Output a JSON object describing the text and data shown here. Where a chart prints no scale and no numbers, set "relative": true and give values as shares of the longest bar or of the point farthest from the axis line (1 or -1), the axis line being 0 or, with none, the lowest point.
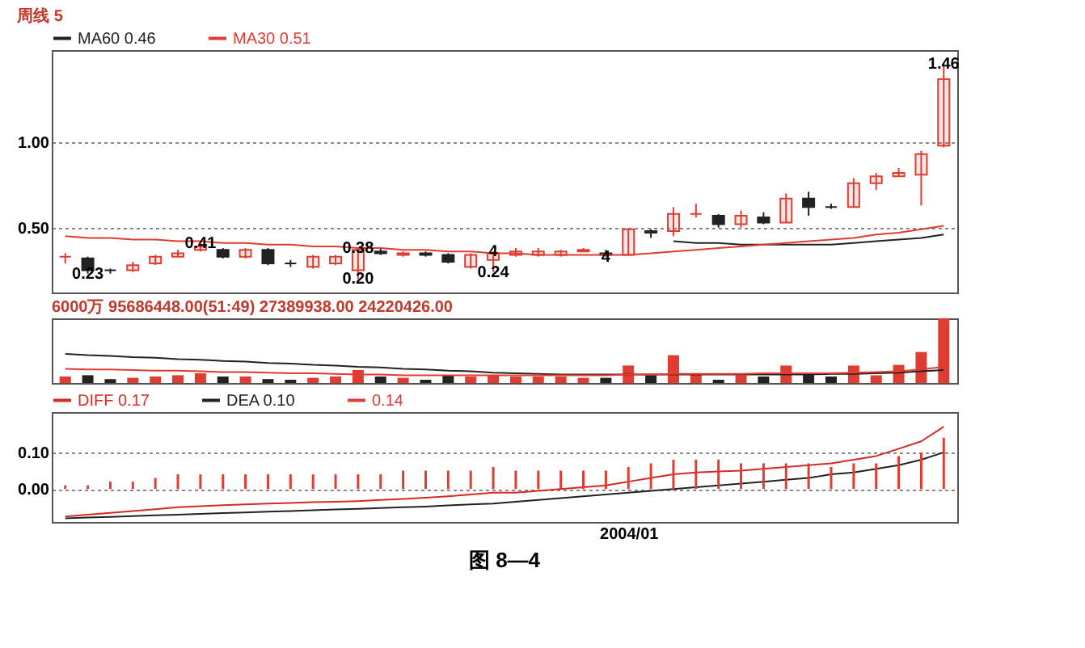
{
  "chart_data": [
    {
      "type": "candlestick",
      "title": "周线",
      "categories": [
        null,
        null,
        null,
        null,
        null,
        null,
        null,
        null,
        null,
        null,
        null,
        null,
        null,
        null,
        null,
        null,
        null,
        null,
        null,
        null,
        null,
        null,
        null,
        null,
        null,
        null,
        null,
        null,
        null,
        null,
        null,
        null,
        null,
        null,
        null,
        null,
        null,
        null,
        null,
        null
      ],
      "ohlc": [
        [
          0.33,
          0.35,
          0.29,
          0.33
        ],
        [
          0.32,
          0.33,
          0.23,
          0.25
        ],
        [
          0.25,
          0.26,
          0.23,
          0.25
        ],
        [
          0.25,
          0.3,
          0.24,
          0.28
        ],
        [
          0.29,
          0.34,
          0.28,
          0.33
        ],
        [
          0.33,
          0.37,
          0.33,
          0.35
        ],
        [
          0.37,
          0.41,
          0.36,
          0.39
        ],
        [
          0.37,
          0.38,
          0.32,
          0.33
        ],
        [
          0.33,
          0.38,
          0.32,
          0.37
        ],
        [
          0.37,
          0.38,
          0.28,
          0.29
        ],
        [
          0.29,
          0.31,
          0.27,
          0.29
        ],
        [
          0.27,
          0.34,
          0.26,
          0.33
        ],
        [
          0.29,
          0.34,
          0.28,
          0.33
        ],
        [
          0.25,
          0.38,
          0.2,
          0.37
        ],
        [
          0.36,
          0.38,
          0.34,
          0.35
        ],
        [
          0.34,
          0.36,
          0.33,
          0.35
        ],
        [
          0.35,
          0.36,
          0.33,
          0.34
        ],
        [
          0.34,
          0.35,
          0.29,
          0.3
        ],
        [
          0.27,
          0.35,
          0.26,
          0.34
        ],
        [
          0.31,
          0.36,
          0.24,
          0.35
        ],
        [
          0.34,
          0.38,
          0.33,
          0.36
        ],
        [
          0.34,
          0.38,
          0.33,
          0.36
        ],
        [
          0.34,
          0.37,
          0.33,
          0.36
        ],
        [
          0.36,
          0.38,
          0.36,
          0.37
        ],
        [
          0.35,
          0.37,
          0.33,
          0.34
        ],
        [
          0.34,
          0.49,
          0.34,
          0.49
        ],
        [
          0.48,
          0.49,
          0.44,
          0.47
        ],
        [
          0.48,
          0.62,
          0.45,
          0.58
        ],
        [
          0.58,
          0.64,
          0.56,
          0.58
        ],
        [
          0.57,
          0.58,
          0.5,
          0.52
        ],
        [
          0.52,
          0.6,
          0.5,
          0.57
        ],
        [
          0.56,
          0.59,
          0.52,
          0.53
        ],
        [
          0.53,
          0.7,
          0.53,
          0.67
        ],
        [
          0.67,
          0.71,
          0.57,
          0.62
        ],
        [
          0.62,
          0.64,
          0.61,
          0.62
        ],
        [
          0.62,
          0.79,
          0.62,
          0.76
        ],
        [
          0.76,
          0.82,
          0.72,
          0.8
        ],
        [
          0.8,
          0.85,
          0.8,
          0.82
        ],
        [
          0.81,
          0.95,
          0.63,
          0.93
        ],
        [
          0.98,
          1.46,
          0.97,
          1.37
        ]
      ],
      "colors": [
        "#e03c31",
        "#222222",
        "#222222",
        "#e03c31",
        "#e03c31",
        "#e03c31",
        "#e03c31",
        "#222222",
        "#e03c31",
        "#222222",
        "#222222",
        "#e03c31",
        "#e03c31",
        "#e03c31",
        "#222222",
        "#e03c31",
        "#222222",
        "#222222",
        "#e03c31",
        "#e03c31",
        "#e03c31",
        "#e03c31",
        "#e03c31",
        "#e03c31",
        "#222222",
        "#e03c31",
        "#222222",
        "#e03c31",
        "#e03c31",
        "#222222",
        "#e03c31",
        "#222222",
        "#e03c31",
        "#222222",
        "#222222",
        "#e03c31",
        "#e03c31",
        "#e03c31",
        "#e03c31",
        "#e03c31"
      ],
      "series": [
        {
          "name": "MA60 0.46",
          "type": "line",
          "color": "#222222",
          "values": [
            null,
            null,
            null,
            null,
            null,
            null,
            null,
            null,
            null,
            null,
            null,
            null,
            null,
            null,
            null,
            null,
            null,
            null,
            null,
            null,
            null,
            null,
            null,
            null,
            null,
            null,
            null,
            0.42,
            0.41,
            0.41,
            0.4,
            0.4,
            0.4,
            0.4,
            0.4,
            0.41,
            0.42,
            0.43,
            0.44,
            0.46
          ]
        },
        {
          "name": "MA30 0.51",
          "type": "line",
          "color": "#e03c31",
          "values": [
            0.45,
            0.44,
            0.44,
            0.43,
            0.43,
            0.42,
            0.42,
            0.41,
            0.41,
            0.4,
            0.4,
            0.39,
            0.39,
            0.38,
            0.38,
            0.37,
            0.37,
            0.36,
            0.36,
            0.35,
            0.35,
            0.34,
            0.34,
            0.34,
            0.34,
            0.34,
            0.35,
            0.36,
            0.37,
            0.38,
            0.39,
            0.4,
            0.41,
            0.42,
            0.43,
            0.44,
            0.46,
            0.47,
            0.49,
            0.51
          ]
        }
      ],
      "ylim": [
        0.12,
        1.54
      ],
      "yticks": [
        {
          "value": 0.5,
          "label": "0.50"
        },
        {
          "value": 1,
          "label": "1.00"
        }
      ],
      "grid": "y",
      "legend": "top",
      "tick_labels": "y",
      "annotations": [
        {
          "text": "0.23",
          "y": 0.23
        },
        {
          "text": "0.41",
          "y": 0.41
        },
        {
          "text": "0.38",
          "y": 0.38
        },
        {
          "text": "0.20",
          "y": 0.2
        },
        {
          "text": "0.24",
          "y": 0.24
        },
        {
          "text": "4",
          "y": 0.36
        },
        {
          "text": "4",
          "y": 0.33
        },
        {
          "text": "1.46",
          "y": 1.46
        },
        "5"
      ]
    },
    {
      "type": "bar",
      "relative": true,
      "categories": [
        null,
        null,
        null,
        null,
        null,
        null,
        null,
        null,
        null,
        null,
        null,
        null,
        null,
        null,
        null,
        null,
        null,
        null,
        null,
        null,
        null,
        null,
        null,
        null,
        null,
        null,
        null,
        null,
        null,
        null,
        null,
        null,
        null,
        null,
        null,
        null,
        null,
        null,
        null,
        null
      ],
      "values": [
        0.1,
        0.12,
        0.06,
        0.08,
        0.1,
        0.12,
        0.15,
        0.1,
        0.1,
        0.06,
        0.05,
        0.08,
        0.1,
        0.2,
        0.1,
        0.08,
        0.05,
        0.12,
        0.1,
        0.12,
        0.1,
        0.1,
        0.1,
        0.08,
        0.08,
        0.27,
        0.12,
        0.43,
        0.15,
        0.05,
        0.12,
        0.1,
        0.27,
        0.15,
        0.1,
        0.27,
        0.12,
        0.28,
        0.48,
        1
      ],
      "colors": [
        "#e03c31",
        "#222222",
        "#222222",
        "#e03c31",
        "#e03c31",
        "#e03c31",
        "#e03c31",
        "#222222",
        "#e03c31",
        "#222222",
        "#222222",
        "#e03c31",
        "#e03c31",
        "#e03c31",
        "#222222",
        "#e03c31",
        "#222222",
        "#222222",
        "#e03c31",
        "#e03c31",
        "#e03c31",
        "#e03c31",
        "#e03c31",
        "#e03c31",
        "#222222",
        "#e03c31",
        "#222222",
        "#e03c31",
        "#e03c31",
        "#222222",
        "#e03c31",
        "#222222",
        "#e03c31",
        "#222222",
        "#222222",
        "#e03c31",
        "#e03c31",
        "#e03c31",
        "#e03c31",
        "#e03c31"
      ],
      "series": [
        {
          "type": "line",
          "color": "#222222",
          "values": [
            0.45,
            0.43,
            0.42,
            0.4,
            0.39,
            0.37,
            0.36,
            0.34,
            0.33,
            0.31,
            0.3,
            0.28,
            0.27,
            0.25,
            0.24,
            0.22,
            0.21,
            0.19,
            0.18,
            0.16,
            0.15,
            0.14,
            0.13,
            0.13,
            0.13,
            0.13,
            0.13,
            0.13,
            0.13,
            0.13,
            0.13,
            0.13,
            0.13,
            0.13,
            0.14,
            0.14,
            0.15,
            0.16,
            0.18,
            0.2
          ]
        },
        {
          "type": "line",
          "color": "#e03c31",
          "values": [
            0.22,
            0.21,
            0.21,
            0.2,
            0.19,
            0.19,
            0.18,
            0.17,
            0.17,
            0.16,
            0.15,
            0.15,
            0.14,
            0.13,
            0.13,
            0.12,
            0.12,
            0.12,
            0.12,
            0.12,
            0.12,
            0.12,
            0.12,
            0.12,
            0.12,
            0.13,
            0.13,
            0.14,
            0.14,
            0.14,
            0.14,
            0.15,
            0.15,
            0.15,
            0.15,
            0.16,
            0.17,
            0.18,
            0.21,
            0.25
          ]
        }
      ],
      "tick_labels": false,
      "annotations": [
        "6000万",
        "95686448.00(51:49)",
        "27389938.00",
        "24220426.00"
      ]
    },
    {
      "type": "line",
      "categories": [
        null,
        null,
        null,
        null,
        null,
        null,
        null,
        null,
        null,
        null,
        null,
        null,
        null,
        null,
        null,
        null,
        null,
        null,
        null,
        null,
        null,
        null,
        null,
        null,
        null,
        "2004/01",
        null,
        null,
        null,
        null,
        null,
        null,
        null,
        null,
        null,
        null,
        null,
        null,
        null,
        null
      ],
      "series": [
        {
          "name": "DIFF 0.17",
          "color": "#d42a26",
          "values": [
            -0.075,
            -0.07,
            -0.065,
            -0.06,
            -0.055,
            -0.05,
            -0.047,
            -0.044,
            -0.042,
            -0.04,
            -0.038,
            -0.036,
            -0.035,
            -0.033,
            -0.03,
            -0.027,
            -0.024,
            -0.02,
            -0.015,
            -0.01,
            -0.01,
            -0.005,
            0,
            0.005,
            0.01,
            0.02,
            0.03,
            0.04,
            0.045,
            0.048,
            0.05,
            0.055,
            0.06,
            0.065,
            0.07,
            0.08,
            0.09,
            0.11,
            0.13,
            0.17
          ]
        },
        {
          "name": "DEA 0.10",
          "color": "#222222",
          "values": [
            -0.08,
            -0.078,
            -0.076,
            -0.074,
            -0.072,
            -0.07,
            -0.068,
            -0.066,
            -0.064,
            -0.062,
            -0.06,
            -0.058,
            -0.056,
            -0.054,
            -0.052,
            -0.05,
            -0.048,
            -0.045,
            -0.042,
            -0.04,
            -0.035,
            -0.03,
            -0.025,
            -0.02,
            -0.015,
            -0.01,
            -0.005,
            0,
            0.005,
            0.01,
            0.015,
            0.02,
            0.025,
            0.03,
            0.04,
            0.045,
            0.055,
            0.065,
            0.08,
            0.1
          ]
        },
        {
          "name": "0.14",
          "type": "bar",
          "color": "#e03c31",
          "values": [
            0.01,
            0.01,
            0.02,
            0.02,
            0.03,
            0.04,
            0.04,
            0.04,
            0.04,
            0.04,
            0.04,
            0.04,
            0.04,
            0.04,
            0.04,
            0.05,
            0.05,
            0.05,
            0.05,
            0.06,
            0.05,
            0.05,
            0.05,
            0.05,
            0.05,
            0.06,
            0.07,
            0.08,
            0.08,
            0.08,
            0.07,
            0.07,
            0.07,
            0.07,
            0.06,
            0.07,
            0.07,
            0.09,
            0.1,
            0.14
          ]
        }
      ],
      "ylim": [
        -0.09,
        0.21
      ],
      "yticks": [
        {
          "value": 0,
          "label": "0.00"
        },
        {
          "value": 0.1,
          "label": "0.10"
        }
      ],
      "grid": "y",
      "legend": "top",
      "annotations": [
        "图 8—4"
      ]
    }
  ]
}
